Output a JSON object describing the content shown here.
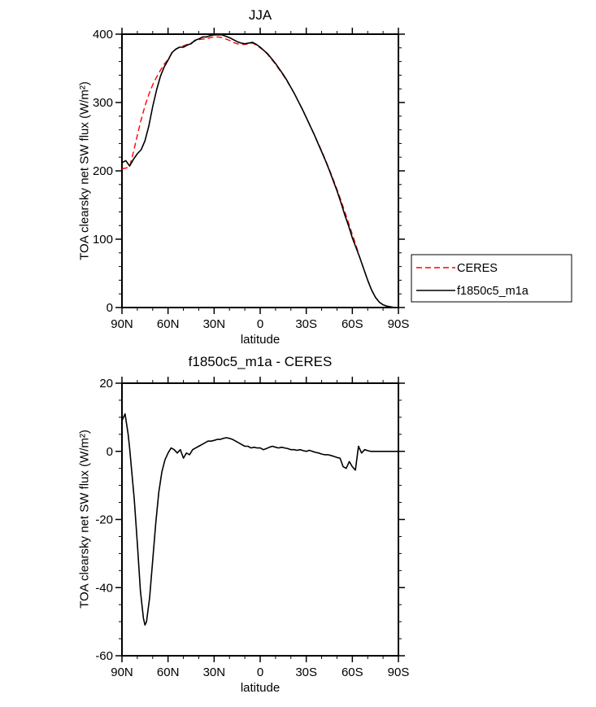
{
  "figure": {
    "background": "#ffffff"
  },
  "chart_data": [
    {
      "id": "toa_net_sw",
      "type": "line",
      "title": "JJA",
      "xlabel": "latitude",
      "ylabel": "TOA clearsky net SW flux (W/m²)",
      "xlim": [
        90,
        -90
      ],
      "ylim": [
        0,
        400
      ],
      "grid": false,
      "xticks": [
        {
          "value": 90,
          "label": "90N"
        },
        {
          "value": 60,
          "label": "60N"
        },
        {
          "value": 30,
          "label": "30N"
        },
        {
          "value": 0,
          "label": "0"
        },
        {
          "value": -30,
          "label": "30S"
        },
        {
          "value": -60,
          "label": "60S"
        },
        {
          "value": -90,
          "label": "90S"
        }
      ],
      "yticks": [
        {
          "value": 0,
          "label": "0"
        },
        {
          "value": 100,
          "label": "100"
        },
        {
          "value": 200,
          "label": "200"
        },
        {
          "value": 300,
          "label": "300"
        },
        {
          "value": 400,
          "label": "400"
        }
      ],
      "minor_x_step": 10,
      "minor_y_step": 20,
      "legend": {
        "position": "outside-right-bottom",
        "entries": [
          "CERES",
          "f1850c5_m1a"
        ]
      },
      "series": [
        {
          "name": "CERES",
          "color": "#ff0000",
          "dashed": true,
          "x": [
            90,
            87.5,
            85,
            82.5,
            80,
            77.5,
            75,
            72.5,
            70,
            67.5,
            65,
            62.5,
            60,
            57.5,
            55,
            52.5,
            50,
            47.5,
            45,
            42.5,
            40,
            37.5,
            35,
            32.5,
            30,
            27.5,
            25,
            22.5,
            20,
            17.5,
            15,
            12.5,
            10,
            7.5,
            5,
            2.5,
            0,
            -2.5,
            -5,
            -7.5,
            -10,
            -12.5,
            -15,
            -17.5,
            -20,
            -22.5,
            -25,
            -27.5,
            -30,
            -32.5,
            -35,
            -37.5,
            -40,
            -42.5,
            -45,
            -47.5,
            -50,
            -52.5,
            -55,
            -57.5,
            -60,
            -62.5,
            -65,
            -67.5,
            -70,
            -72.5,
            -75,
            -77.5,
            -80,
            -82.5,
            -85,
            -87.5,
            -90
          ],
          "y": [
            203,
            204,
            206,
            228,
            252,
            275,
            295,
            312,
            326,
            337,
            347,
            356,
            363,
            372,
            378,
            381,
            383,
            385,
            387,
            390,
            392,
            393,
            393,
            395,
            396,
            396,
            395,
            393,
            391,
            388,
            386,
            385,
            385,
            386,
            387,
            384,
            380,
            376,
            370,
            363,
            356,
            348,
            340,
            331,
            322,
            312,
            301,
            290,
            278,
            266,
            254,
            242,
            229,
            216,
            202,
            188,
            173,
            157,
            141,
            124,
            107,
            90,
            72,
            56,
            40,
            26,
            15,
            8,
            4,
            2,
            1,
            0,
            0
          ]
        },
        {
          "name": "f1850c5_m1a",
          "color": "#000000",
          "dashed": false,
          "x": [
            90,
            87.5,
            85,
            82.5,
            80,
            77.5,
            75,
            72.5,
            70,
            67.5,
            65,
            62.5,
            60,
            57.5,
            55,
            52.5,
            50,
            47.5,
            45,
            42.5,
            40,
            37.5,
            35,
            32.5,
            30,
            27.5,
            25,
            22.5,
            20,
            17.5,
            15,
            12.5,
            10,
            7.5,
            5,
            2.5,
            0,
            -2.5,
            -5,
            -7.5,
            -10,
            -12.5,
            -15,
            -17.5,
            -20,
            -22.5,
            -25,
            -27.5,
            -30,
            -32.5,
            -35,
            -37.5,
            -40,
            -42.5,
            -45,
            -47.5,
            -50,
            -52.5,
            -55,
            -57.5,
            -60,
            -62.5,
            -65,
            -67.5,
            -70,
            -72.5,
            -75,
            -77.5,
            -80,
            -82.5,
            -85,
            -87.5,
            -90
          ],
          "y": [
            212,
            215,
            207,
            217,
            225,
            231,
            244,
            266,
            294,
            318,
            338,
            352,
            362,
            373,
            378,
            381,
            381,
            384,
            386,
            391,
            393,
            396,
            396,
            398,
            399,
            399,
            399,
            397,
            395,
            392,
            389,
            387,
            386,
            387,
            388,
            385,
            381,
            376,
            371,
            364,
            357,
            349,
            341,
            332,
            322,
            312,
            301,
            290,
            278,
            266,
            254,
            241,
            228,
            215,
            201,
            186,
            171,
            154,
            136,
            120,
            102,
            87,
            72,
            56,
            40,
            26,
            15,
            8,
            4,
            2,
            1,
            0,
            0
          ]
        }
      ]
    },
    {
      "id": "difference",
      "type": "line",
      "title": "f1850c5_m1a - CERES",
      "xlabel": "latitude",
      "ylabel": "TOA clearsky net SW flux (W/m²)",
      "xlim": [
        90,
        -90
      ],
      "ylim": [
        -60,
        20
      ],
      "grid": false,
      "xticks": [
        {
          "value": 90,
          "label": "90N"
        },
        {
          "value": 60,
          "label": "60N"
        },
        {
          "value": 30,
          "label": "30N"
        },
        {
          "value": 0,
          "label": "0"
        },
        {
          "value": -30,
          "label": "30S"
        },
        {
          "value": -60,
          "label": "60S"
        },
        {
          "value": -90,
          "label": "90S"
        }
      ],
      "yticks": [
        {
          "value": -60,
          "label": "-60"
        },
        {
          "value": -40,
          "label": "-40"
        },
        {
          "value": -20,
          "label": "-20"
        },
        {
          "value": 0,
          "label": "0"
        },
        {
          "value": 20,
          "label": "20"
        }
      ],
      "minor_x_step": 10,
      "minor_y_step": 5,
      "series": [
        {
          "name": "f1850c5_m1a - CERES",
          "color": "#000000",
          "dashed": false,
          "x": [
            90,
            88,
            86,
            85,
            84,
            82,
            80,
            78,
            76,
            75,
            74,
            72,
            70,
            68,
            66,
            64,
            62,
            60,
            58,
            56,
            54,
            52,
            50,
            48,
            46,
            44,
            42,
            40,
            38,
            36,
            34,
            32,
            30,
            28,
            26,
            24,
            22,
            20,
            18,
            16,
            14,
            12,
            10,
            8,
            6,
            4,
            2,
            0,
            -2,
            -4,
            -6,
            -8,
            -10,
            -12,
            -14,
            -16,
            -18,
            -20,
            -22,
            -24,
            -26,
            -28,
            -30,
            -32,
            -34,
            -36,
            -38,
            -40,
            -42,
            -44,
            -46,
            -48,
            -50,
            -52,
            -54,
            -56,
            -58,
            -60,
            -62,
            -63,
            -64,
            -65,
            -66,
            -68,
            -70,
            -72,
            -75,
            -78,
            -80,
            -85,
            -90
          ],
          "y": [
            9,
            11,
            5,
            1,
            -4,
            -14,
            -27,
            -41,
            -49,
            -51,
            -50,
            -43,
            -32,
            -21,
            -12,
            -6,
            -2.5,
            -0.5,
            1,
            0.5,
            -0.5,
            0.5,
            -2,
            -0.5,
            -1,
            0.5,
            1,
            1.5,
            2,
            2.5,
            3,
            3,
            3.2,
            3.5,
            3.5,
            3.8,
            4,
            3.8,
            3.5,
            3,
            2.5,
            2,
            1.5,
            1.5,
            1,
            1.2,
            1,
            1,
            0.5,
            0.8,
            1.2,
            1.5,
            1.2,
            1,
            1.2,
            1,
            0.8,
            0.5,
            0.5,
            0.3,
            0.5,
            0.2,
            0,
            0.3,
            0,
            -0.3,
            -0.5,
            -0.8,
            -1,
            -1,
            -1.2,
            -1.5,
            -1.8,
            -2,
            -4.5,
            -5,
            -3,
            -4.5,
            -5.5,
            -2,
            1.5,
            0.5,
            -0.5,
            0.5,
            0.2,
            0,
            0,
            0,
            0,
            0,
            0
          ]
        }
      ]
    }
  ]
}
